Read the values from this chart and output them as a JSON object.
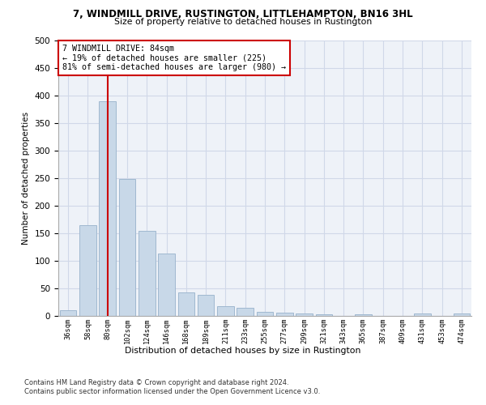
{
  "title": "7, WINDMILL DRIVE, RUSTINGTON, LITTLEHAMPTON, BN16 3HL",
  "subtitle": "Size of property relative to detached houses in Rustington",
  "xlabel": "Distribution of detached houses by size in Rustington",
  "ylabel": "Number of detached properties",
  "bar_color": "#c8d8e8",
  "bar_edge_color": "#a0b8d0",
  "categories": [
    "36sqm",
    "58sqm",
    "80sqm",
    "102sqm",
    "124sqm",
    "146sqm",
    "168sqm",
    "189sqm",
    "211sqm",
    "233sqm",
    "255sqm",
    "277sqm",
    "299sqm",
    "321sqm",
    "343sqm",
    "365sqm",
    "387sqm",
    "409sqm",
    "431sqm",
    "453sqm",
    "474sqm"
  ],
  "values": [
    10,
    165,
    390,
    248,
    155,
    113,
    42,
    38,
    17,
    15,
    8,
    6,
    4,
    3,
    0,
    3,
    0,
    0,
    4,
    0,
    4
  ],
  "property_bin_index": 2,
  "property_label": "7 WINDMILL DRIVE: 84sqm",
  "annotation_line1": "← 19% of detached houses are smaller (225)",
  "annotation_line2": "81% of semi-detached houses are larger (980) →",
  "vline_color": "#cc0000",
  "annotation_border_color": "#cc0000",
  "ylim": [
    0,
    500
  ],
  "yticks": [
    0,
    50,
    100,
    150,
    200,
    250,
    300,
    350,
    400,
    450,
    500
  ],
  "grid_color": "#d0d8e8",
  "footer_line1": "Contains HM Land Registry data © Crown copyright and database right 2024.",
  "footer_line2": "Contains public sector information licensed under the Open Government Licence v3.0."
}
